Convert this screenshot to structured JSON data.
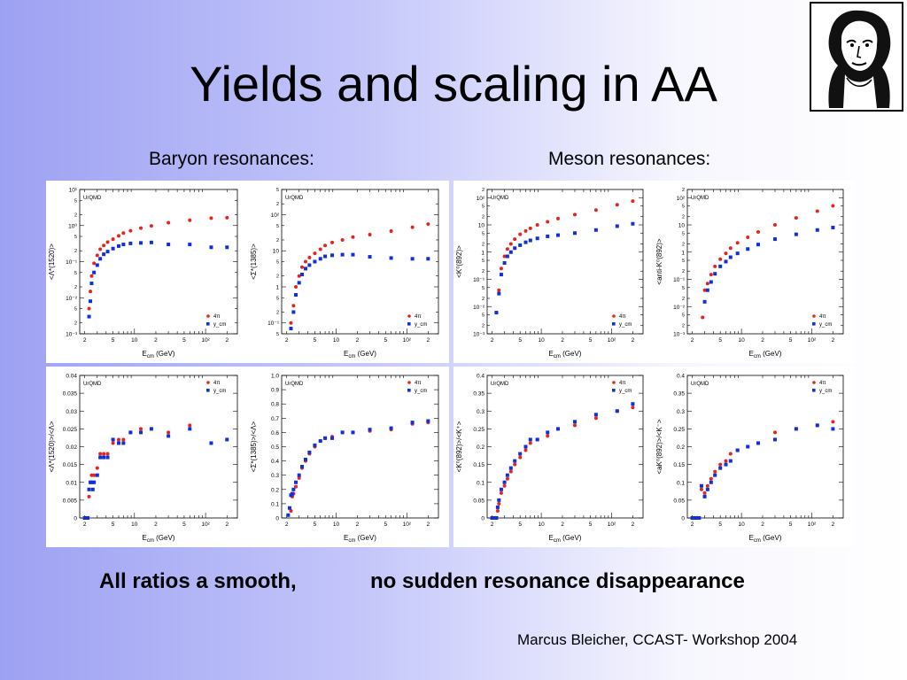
{
  "slide": {
    "title": "Yields and scaling in AA",
    "subtitle_left": "Baryon resonances:",
    "subtitle_right": "Meson resonances:",
    "bottom_left": "All ratios a smooth,",
    "bottom_right": "no sudden resonance disappearance",
    "footer": "Marcus Bleicher, CCAST- Workshop 2004"
  },
  "colors": {
    "red": "#e8221c",
    "blue": "#1030e0"
  },
  "chart_data": [
    {
      "type": "scatter",
      "title": "",
      "xlabel": "E",
      "xlabel_sub": "cm",
      "xlabel_unit": "(GeV)",
      "ylabel": "<Λ*(1520)>",
      "yscale": "log",
      "ylim": [
        0.001,
        10
      ],
      "xscale": "log",
      "xlim": [
        1.7,
        280
      ],
      "model_label": "UrQMD",
      "ytick_labels": [
        "10⁻³",
        "10⁻²",
        "10⁻¹",
        "10⁰",
        "10¹"
      ],
      "xtick_labels": [
        "2",
        "5",
        "10",
        "2",
        "5",
        "10²",
        "2"
      ],
      "legend": [
        "4π",
        "y_cm"
      ],
      "legend_position": "bottom-right",
      "series": [
        {
          "name": "4π",
          "color": "red",
          "x": [
            2.3,
            2.4,
            2.5,
            2.7,
            3,
            3.3,
            3.7,
            4.2,
            5,
            6,
            7,
            8.8,
            12.3,
            17.3,
            30,
            60,
            120,
            200
          ],
          "y": [
            0.005,
            0.015,
            0.04,
            0.09,
            0.15,
            0.22,
            0.28,
            0.35,
            0.42,
            0.52,
            0.62,
            0.72,
            0.85,
            0.98,
            1.2,
            1.4,
            1.6,
            1.65
          ]
        },
        {
          "name": "y_cm",
          "color": "blue",
          "x": [
            2.3,
            2.4,
            2.5,
            2.7,
            3,
            3.3,
            3.7,
            4.2,
            5,
            6,
            7,
            8.8,
            12.3,
            17.3,
            30,
            60,
            120,
            200
          ],
          "y": [
            0.003,
            0.008,
            0.025,
            0.05,
            0.08,
            0.12,
            0.16,
            0.19,
            0.23,
            0.27,
            0.3,
            0.32,
            0.33,
            0.34,
            0.3,
            0.3,
            0.25,
            0.25
          ]
        }
      ]
    },
    {
      "type": "scatter",
      "title": "",
      "xlabel": "E",
      "xlabel_sub": "cm",
      "xlabel_unit": "(GeV)",
      "ylabel": "<Σ*(1385)>",
      "yscale": "log",
      "ylim": [
        0.05,
        500
      ],
      "xscale": "log",
      "xlim": [
        1.7,
        280
      ],
      "model_label": "UrQMD",
      "ytick_labels": [
        "10⁻¹",
        "1",
        "10",
        "10²"
      ],
      "xtick_labels": [
        "2",
        "5",
        "10",
        "2",
        "5",
        "10²",
        "2"
      ],
      "legend": [
        "4π",
        "y_cm"
      ],
      "legend_position": "bottom-right",
      "series": [
        {
          "name": "4π",
          "color": "red",
          "x": [
            2.3,
            2.5,
            2.7,
            3,
            3.3,
            3.7,
            4.2,
            5,
            6,
            7,
            8.8,
            12.3,
            17.3,
            30,
            60,
            120,
            200
          ],
          "y": [
            0.1,
            0.3,
            1,
            2,
            3.5,
            5,
            6.5,
            8.5,
            11,
            14,
            17,
            20,
            24,
            28,
            35,
            45,
            55
          ]
        },
        {
          "name": "y_cm",
          "color": "blue",
          "x": [
            2.3,
            2.5,
            2.7,
            3,
            3.3,
            3.7,
            4.2,
            5,
            6,
            7,
            8.8,
            12.3,
            17.3,
            30,
            60,
            120,
            200
          ],
          "y": [
            0.07,
            0.2,
            0.6,
            1.3,
            2.2,
            3.2,
            4,
            5,
            6,
            7,
            7.5,
            7.8,
            7.8,
            6.8,
            6.3,
            6,
            6
          ]
        }
      ]
    },
    {
      "type": "scatter",
      "title": "",
      "xlabel": "E",
      "xlabel_sub": "cm",
      "xlabel_unit": "(GeV)",
      "ylabel": "<K⁰(892)>",
      "yscale": "log",
      "ylim": [
        0.001,
        200
      ],
      "xscale": "log",
      "xlim": [
        1.7,
        280
      ],
      "model_label": "UrQMD",
      "ytick_labels": [
        "10⁻³",
        "10⁻²",
        "10⁻¹",
        "1",
        "10",
        "10²"
      ],
      "xtick_labels": [
        "2",
        "5",
        "10",
        "2",
        "5",
        "10²",
        "2"
      ],
      "legend": [
        "4π",
        "y_cm"
      ],
      "legend_position": "bottom-right",
      "series": [
        {
          "name": "4π",
          "color": "red",
          "x": [
            2.3,
            2.5,
            2.7,
            3,
            3.3,
            3.7,
            4.2,
            5,
            6,
            7,
            8.8,
            12.3,
            17.3,
            30,
            60,
            120,
            200
          ],
          "y": [
            0.006,
            0.04,
            0.25,
            0.7,
            1.3,
            2,
            3,
            4.5,
            6,
            7.5,
            10,
            13,
            17,
            24,
            35,
            55,
            75
          ]
        },
        {
          "name": "y_cm",
          "color": "blue",
          "x": [
            2.3,
            2.5,
            2.7,
            3,
            3.3,
            3.7,
            4.2,
            5,
            6,
            7,
            8.8,
            12.3,
            17.3,
            30,
            60,
            120,
            200
          ],
          "y": [
            0.006,
            0.03,
            0.15,
            0.4,
            0.7,
            1,
            1.4,
            1.8,
            2.3,
            2.7,
            3.2,
            3.8,
            4.2,
            5,
            6.5,
            9,
            11
          ]
        }
      ]
    },
    {
      "type": "scatter",
      "title": "",
      "xlabel": "E",
      "xlabel_sub": "cm",
      "xlabel_unit": "(GeV)",
      "ylabel": "<anti-K⁰(892)>",
      "yscale": "log",
      "ylim": [
        0.001,
        200
      ],
      "xscale": "log",
      "xlim": [
        1.7,
        280
      ],
      "model_label": "UrQMD",
      "ytick_labels": [
        "10⁻³",
        "10⁻²",
        "10⁻¹",
        "1",
        "10",
        "10²"
      ],
      "xtick_labels": [
        "2",
        "5",
        "10",
        "2",
        "5",
        "10²",
        "2"
      ],
      "legend": [
        "4π",
        "y_cm"
      ],
      "legend_position": "bottom-right",
      "series": [
        {
          "name": "4π",
          "color": "red",
          "x": [
            2.8,
            3,
            3.3,
            3.7,
            4.2,
            5,
            6,
            7,
            8.8,
            12.3,
            17.3,
            30,
            60,
            120,
            200
          ],
          "y": [
            0.004,
            0.04,
            0.07,
            0.15,
            0.3,
            0.55,
            0.9,
            1.4,
            2.2,
            3.5,
            5.5,
            10,
            18,
            32,
            50
          ]
        },
        {
          "name": "y_cm",
          "color": "blue",
          "x": [
            3,
            3.3,
            3.7,
            4.2,
            5,
            6,
            7,
            8.8,
            12.3,
            17.3,
            30,
            60,
            120,
            200
          ],
          "y": [
            0.015,
            0.04,
            0.08,
            0.16,
            0.3,
            0.45,
            0.65,
            0.9,
            1.3,
            1.9,
            3,
            4.5,
            6.5,
            8
          ]
        }
      ]
    },
    {
      "type": "scatter",
      "title": "",
      "xlabel": "E",
      "xlabel_sub": "cm",
      "xlabel_unit": "(GeV)",
      "ylabel": "<Λ*(1520)>/<Λ>",
      "yscale": "linear",
      "ylim": [
        0,
        0.04
      ],
      "xscale": "log",
      "xlim": [
        1.7,
        280
      ],
      "model_label": "UrQMD",
      "ytick_labels": [
        "0",
        "0.005",
        "0.01",
        "0.015",
        "0.02",
        "0.025",
        "0.03",
        "0.035",
        "0.04"
      ],
      "xtick_labels": [
        "2",
        "5",
        "10",
        "2",
        "5",
        "10²",
        "2"
      ],
      "legend": [
        "4π",
        "y_cm"
      ],
      "legend_position": "top-right",
      "series": [
        {
          "name": "4π",
          "color": "red",
          "x": [
            2.3,
            2.5,
            2.7,
            3,
            3.3,
            3.7,
            4.2,
            5,
            6,
            7,
            8.8,
            12.3,
            17.3,
            30,
            60
          ],
          "y": [
            0.006,
            0.012,
            0.012,
            0.014,
            0.018,
            0.018,
            0.018,
            0.021,
            0.022,
            0.022,
            0.024,
            0.025,
            0.025,
            0.024,
            0.026
          ]
        },
        {
          "name": "y_cm",
          "color": "blue",
          "x": [
            2,
            2.1,
            2.2,
            2.3,
            2.4,
            2.5,
            2.6,
            2.7,
            3,
            3.3,
            3.7,
            4.2,
            5,
            6,
            7,
            8.8,
            12.3,
            17.3,
            30,
            60,
            120,
            200
          ],
          "y": [
            0,
            0,
            0,
            0.008,
            0.01,
            0.01,
            0.008,
            0.01,
            0.012,
            0.017,
            0.017,
            0.017,
            0.022,
            0.021,
            0.021,
            0.024,
            0.024,
            0.025,
            0.023,
            0.025,
            0.021,
            0.022
          ]
        }
      ]
    },
    {
      "type": "scatter",
      "title": "",
      "xlabel": "E",
      "xlabel_sub": "cm",
      "xlabel_unit": "(GeV)",
      "ylabel": "<Σ*(1385)>/<Λ>",
      "yscale": "linear",
      "ylim": [
        0,
        1.0
      ],
      "xscale": "log",
      "xlim": [
        1.7,
        280
      ],
      "model_label": "UrQMD",
      "ytick_labels": [
        "0",
        "0.1",
        "0.2",
        "0.3",
        "0.4",
        "0.5",
        "0.6",
        "0.7",
        "0.8",
        "0.9",
        "1.0"
      ],
      "xtick_labels": [
        "2",
        "5",
        "10",
        "2",
        "5",
        "10²",
        "2"
      ],
      "legend": [
        "4π",
        "y_cm"
      ],
      "legend_position": "top-right",
      "series": [
        {
          "name": "4π",
          "color": "red",
          "x": [
            2.3,
            2.4,
            2.5,
            2.7,
            3,
            3.3,
            3.7,
            4.2,
            5,
            6,
            7,
            8.8,
            12.3,
            17.3,
            30,
            60,
            120,
            200
          ],
          "y": [
            0.05,
            0.15,
            0.17,
            0.22,
            0.28,
            0.35,
            0.4,
            0.45,
            0.5,
            0.54,
            0.56,
            0.57,
            0.6,
            0.6,
            0.61,
            0.62,
            0.66,
            0.67
          ]
        },
        {
          "name": "y_cm",
          "color": "blue",
          "x": [
            2.1,
            2.2,
            2.3,
            2.4,
            2.5,
            2.7,
            3,
            3.3,
            3.7,
            4.2,
            5,
            6,
            7,
            8.8,
            12.3,
            17.3,
            30,
            60,
            120,
            200
          ],
          "y": [
            0.02,
            0.07,
            0.16,
            0.17,
            0.2,
            0.25,
            0.3,
            0.36,
            0.41,
            0.46,
            0.51,
            0.54,
            0.56,
            0.56,
            0.6,
            0.6,
            0.62,
            0.63,
            0.67,
            0.68
          ]
        }
      ]
    },
    {
      "type": "scatter",
      "title": "",
      "xlabel": "E",
      "xlabel_sub": "cm",
      "xlabel_unit": "(GeV)",
      "ylabel": "<K⁰(892)>/<K⁺>",
      "yscale": "linear",
      "ylim": [
        0,
        0.4
      ],
      "xscale": "log",
      "xlim": [
        1.7,
        280
      ],
      "model_label": "UrQMD",
      "ytick_labels": [
        "0",
        "0.05",
        "0.1",
        "0.15",
        "0.2",
        "0.25",
        "0.3",
        "0.35",
        "0.4"
      ],
      "xtick_labels": [
        "2",
        "5",
        "10",
        "2",
        "5",
        "10²",
        "2"
      ],
      "legend": [
        "4π",
        "y_cm"
      ],
      "legend_position": "top-right",
      "series": [
        {
          "name": "4π",
          "color": "red",
          "x": [
            2,
            2.1,
            2.2,
            2.3,
            2.4,
            2.5,
            2.7,
            3,
            3.3,
            3.7,
            4.2,
            5,
            6,
            7,
            8.8,
            12.3,
            17.3,
            30,
            60,
            120,
            200
          ],
          "y": [
            0,
            0,
            0,
            0,
            0.02,
            0.04,
            0.07,
            0.09,
            0.11,
            0.13,
            0.15,
            0.17,
            0.19,
            0.21,
            0.22,
            0.23,
            0.25,
            0.26,
            0.28,
            0.3,
            0.31
          ]
        },
        {
          "name": "y_cm",
          "color": "blue",
          "x": [
            2,
            2.1,
            2.2,
            2.3,
            2.4,
            2.5,
            2.7,
            3,
            3.3,
            3.7,
            4.2,
            5,
            6,
            7,
            8.8,
            12.3,
            17.3,
            30,
            60,
            120,
            200
          ],
          "y": [
            0,
            0,
            0,
            0,
            0.03,
            0.05,
            0.08,
            0.1,
            0.12,
            0.14,
            0.16,
            0.18,
            0.2,
            0.22,
            0.22,
            0.24,
            0.25,
            0.27,
            0.29,
            0.3,
            0.32
          ]
        }
      ]
    },
    {
      "type": "scatter",
      "title": "",
      "xlabel": "E",
      "xlabel_sub": "cm",
      "xlabel_unit": "(GeV)",
      "ylabel": "<aK⁰(892)>/<K⁻>",
      "yscale": "linear",
      "ylim": [
        0,
        0.4
      ],
      "xscale": "log",
      "xlim": [
        1.7,
        280
      ],
      "model_label": "UrQMD",
      "ytick_labels": [
        "0",
        "0.05",
        "0.1",
        "0.15",
        "0.2",
        "0.25",
        "0.3",
        "0.35",
        "0.4"
      ],
      "xtick_labels": [
        "2",
        "5",
        "10",
        "2",
        "5",
        "10²",
        "2"
      ],
      "legend": [
        "4π",
        "y_cm"
      ],
      "legend_position": "top-right",
      "series": [
        {
          "name": "4π",
          "color": "red",
          "x": [
            2,
            2.1,
            2.2,
            2.3,
            2.4,
            2.5,
            2.7,
            3,
            3.3,
            3.7,
            4.2,
            5,
            6,
            7,
            8.8,
            12.3,
            17.3,
            30,
            60,
            120,
            200
          ],
          "y": [
            0,
            0,
            0,
            0,
            0,
            0,
            0.08,
            0.07,
            0.09,
            0.11,
            0.13,
            0.15,
            0.16,
            0.18,
            0.19,
            0.2,
            0.21,
            0.24,
            0.25,
            0.26,
            0.27
          ]
        },
        {
          "name": "y_cm",
          "color": "blue",
          "x": [
            2,
            2.1,
            2.2,
            2.3,
            2.4,
            2.5,
            2.7,
            3,
            3.3,
            3.7,
            4.2,
            5,
            6,
            7,
            8.8,
            12.3,
            17.3,
            30,
            60,
            120,
            200
          ],
          "y": [
            0,
            0,
            0,
            0,
            0,
            0,
            0.09,
            0.06,
            0.08,
            0.1,
            0.12,
            0.14,
            0.15,
            0.16,
            0.19,
            0.2,
            0.21,
            0.22,
            0.25,
            0.26,
            0.25
          ]
        }
      ]
    }
  ]
}
